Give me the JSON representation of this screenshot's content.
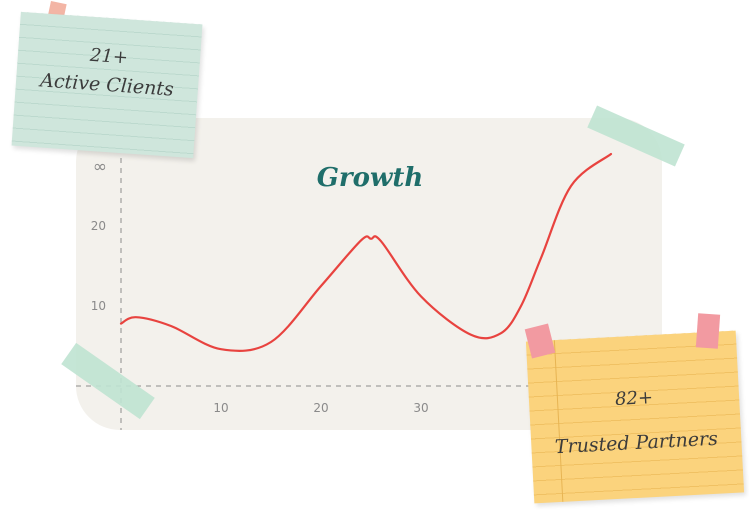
{
  "chart_data": {
    "type": "line",
    "title": "Growth",
    "xlabel": "",
    "ylabel": "",
    "x_ticks": [
      10,
      20,
      30
    ],
    "y_ticks": [
      10,
      20
    ],
    "y_top_label": "∞",
    "xlim": [
      0,
      49
    ],
    "ylim": [
      0,
      30
    ],
    "grid": false,
    "series": [
      {
        "color": "#e8433f",
        "x": [
          0,
          1.5,
          5,
          10,
          15,
          20,
          24,
          25,
          26,
          30,
          35,
          38,
          40,
          42,
          45,
          49
        ],
        "y": [
          7.8,
          8.6,
          7.5,
          4.6,
          5.5,
          12.5,
          18.2,
          18.4,
          18.1,
          11.2,
          6.4,
          6.6,
          10,
          16,
          25,
          29
        ]
      }
    ]
  },
  "notes": {
    "green": {
      "value": "21+",
      "label": "Active Clients"
    },
    "yellow": {
      "value": "82+",
      "label": "Trusted Partners"
    }
  }
}
